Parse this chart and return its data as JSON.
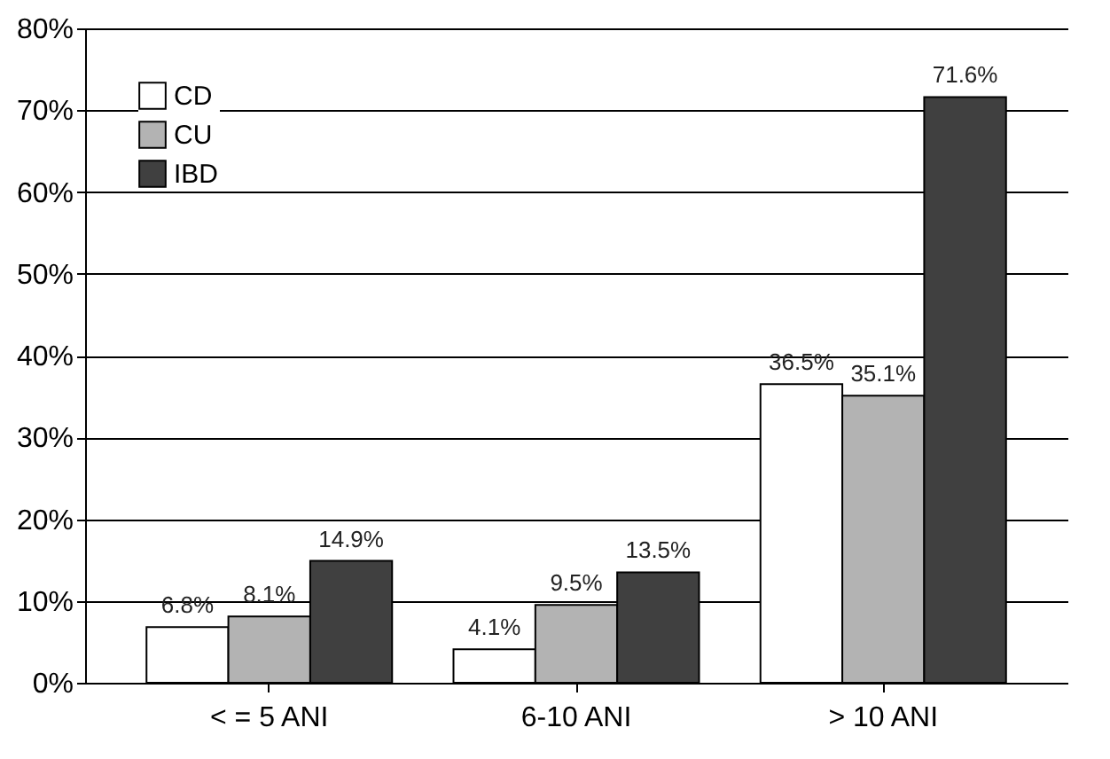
{
  "chart_data": {
    "type": "bar",
    "categories": [
      "< = 5 ANI",
      "6-10 ANI",
      "> 10 ANI"
    ],
    "series": [
      {
        "name": "CD",
        "color": "#ffffff",
        "values": [
          6.8,
          4.1,
          36.5
        ],
        "value_labels": [
          "6.8%",
          "4.1%",
          "36.5%"
        ]
      },
      {
        "name": "CU",
        "color": "#b3b3b3",
        "values": [
          8.1,
          9.5,
          35.1
        ],
        "value_labels": [
          "8.1%",
          "9.5%",
          "35.1%"
        ]
      },
      {
        "name": "IBD",
        "color": "#404040",
        "values": [
          14.9,
          13.5,
          71.6
        ],
        "value_labels": [
          "14.9%",
          "13.5%",
          "71.6%"
        ]
      }
    ],
    "ylim": [
      0,
      80
    ],
    "yticks": [
      {
        "value": 0,
        "label": "0%"
      },
      {
        "value": 10,
        "label": "10%"
      },
      {
        "value": 20,
        "label": "20%"
      },
      {
        "value": 30,
        "label": "30%"
      },
      {
        "value": 40,
        "label": "40%"
      },
      {
        "value": 50,
        "label": "50%"
      },
      {
        "value": 60,
        "label": "60%"
      },
      {
        "value": 70,
        "label": "70%"
      },
      {
        "value": 80,
        "label": "80%"
      }
    ],
    "grid": "y",
    "legend": "top left"
  }
}
